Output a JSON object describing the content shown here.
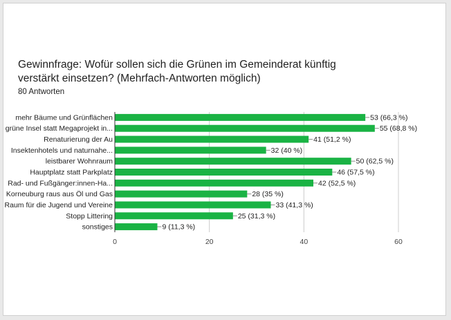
{
  "form": {
    "question": "Gewinnfrage: Wofür sollen sich die Grünen im Gemeinderat künftig verstärkt einsetzen? (Mehrfach-Antworten möglich)",
    "responses": "80 Antworten"
  },
  "chart_data": {
    "type": "bar",
    "orientation": "horizontal",
    "title": "Gewinnfrage: Wofür sollen sich die Grünen im Gemeinderat künftig verstärkt einsetzen? (Mehrfach-Antworten möglich)",
    "subtitle": "80 Antworten",
    "categories": [
      "mehr Bäume und Grünflächen",
      "grüne Insel statt Megaprojekt in...",
      "Renaturierung der Au",
      "Insektenhotels und naturnahe...",
      "leistbarer Wohnraum",
      "Hauptplatz statt Parkplatz",
      "Rad- und Fußgänger:innen-Ha...",
      "Korneuburg raus aus Öl und Gas",
      "Raum für die Jugend und Vereine",
      "Stopp Littering",
      "sonstiges"
    ],
    "values": [
      53,
      55,
      41,
      32,
      50,
      46,
      42,
      28,
      33,
      25,
      9
    ],
    "value_labels": [
      "53 (66,3 %)",
      "55 (68,8 %)",
      "41 (51,2 %)",
      "32 (40 %)",
      "50 (62,5 %)",
      "46 (57,5 %)",
      "42 (52,5 %)",
      "28 (35 %)",
      "33 (41,3 %)",
      "25 (31,3 %)",
      "9 (11,3 %)"
    ],
    "xlim": [
      0,
      60
    ],
    "xticks": [
      0,
      20,
      40,
      60
    ],
    "xtick_labels": [
      "0",
      "20",
      "40",
      "60"
    ],
    "grid": true,
    "bar_color": "#1ab344",
    "grid_color": "#cccccc",
    "axis_color": "#333333"
  }
}
